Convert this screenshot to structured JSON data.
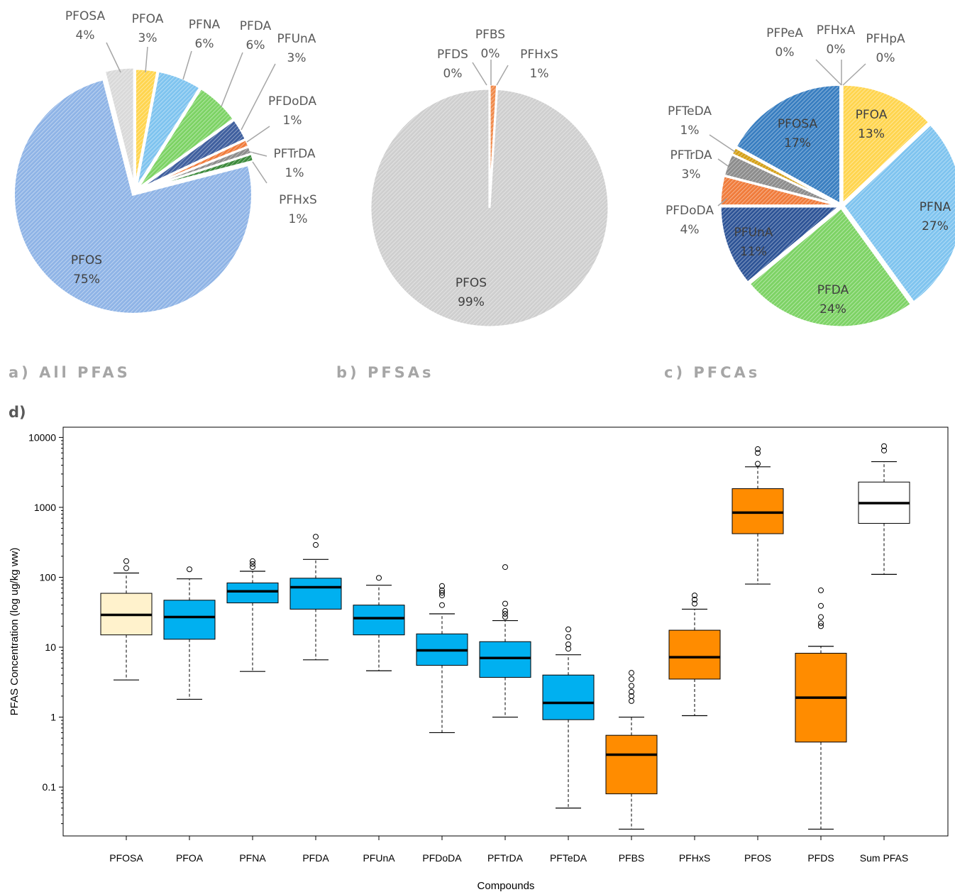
{
  "panels": {
    "a": "a) All PFAS",
    "b": "b) PFSAs",
    "c": "c) PFCAs",
    "d": "d)"
  },
  "colors": {
    "PFOSA": "#d9d9d9",
    "PFOA": "#ffd54f",
    "PFNA": "#7fc4ef",
    "PFDA": "#7dd365",
    "PFUnA": "#3f5f9e",
    "PFDoDA": "#f07c3c",
    "PFTrDA": "#8c8c8c",
    "PFHxS": "#3c8a3c",
    "PFOS": "#8fb4e6",
    "PFBS": "#f08a4b",
    "PFDS": "#5b9bd5",
    "PFOS_b": "#cfcfcf",
    "PFOSA_c": "#3a7fc1",
    "PFOA_c": "#ffd54f",
    "PFNA_c": "#7fc4ef",
    "PFDA_c": "#7dd365",
    "PFUnA_c": "#2f5597",
    "PFDoDA_c": "#f07c3c",
    "PFTrDA_c": "#8c8c8c",
    "PFTeDA_c": "#d4a017",
    "box_cream": "#fff2cc",
    "box_blue": "#00b0f0",
    "box_orange": "#ff8c00",
    "box_white": "#ffffff"
  },
  "chart_data": [
    {
      "type": "pie",
      "title": "a) All PFAS",
      "slices": [
        {
          "name": "PFOA",
          "value": 3,
          "label": "3%",
          "colorKey": "PFOA"
        },
        {
          "name": "PFNA",
          "value": 6,
          "label": "6%",
          "colorKey": "PFNA"
        },
        {
          "name": "PFDA",
          "value": 6,
          "label": "6%",
          "colorKey": "PFDA"
        },
        {
          "name": "PFUnA",
          "value": 3,
          "label": "3%",
          "colorKey": "PFUnA"
        },
        {
          "name": "PFDoDA",
          "value": 1,
          "label": "1%",
          "colorKey": "PFDoDA"
        },
        {
          "name": "PFTrDA",
          "value": 1,
          "label": "1%",
          "colorKey": "PFTrDA"
        },
        {
          "name": "PFHxS",
          "value": 1,
          "label": "1%",
          "colorKey": "PFHxS"
        },
        {
          "name": "PFOS",
          "value": 75,
          "label": "75%",
          "colorKey": "PFOS"
        },
        {
          "name": "PFOSA",
          "value": 4,
          "label": "4%",
          "colorKey": "PFOSA"
        }
      ]
    },
    {
      "type": "pie",
      "title": "b) PFSAs",
      "slices": [
        {
          "name": "PFHxS",
          "value": 1,
          "label": "1%",
          "colorKey": "PFBS"
        },
        {
          "name": "PFOS",
          "value": 99,
          "label": "99%",
          "colorKey": "PFOS_b"
        },
        {
          "name": "PFDS",
          "value": 0,
          "label": "0%",
          "colorKey": "PFDS"
        },
        {
          "name": "PFBS",
          "value": 0,
          "label": "0%",
          "colorKey": "PFBS"
        }
      ]
    },
    {
      "type": "pie",
      "title": "c) PFCAs",
      "slices": [
        {
          "name": "PFOA",
          "value": 13,
          "label": "13%",
          "colorKey": "PFOA_c"
        },
        {
          "name": "PFNA",
          "value": 27,
          "label": "27%",
          "colorKey": "PFNA_c"
        },
        {
          "name": "PFDA",
          "value": 24,
          "label": "24%",
          "colorKey": "PFDA_c"
        },
        {
          "name": "PFUnA",
          "value": 11,
          "label": "11%",
          "colorKey": "PFUnA_c"
        },
        {
          "name": "PFDoDA",
          "value": 4,
          "label": "4%",
          "colorKey": "PFDoDA_c"
        },
        {
          "name": "PFTrDA",
          "value": 3,
          "label": "3%",
          "colorKey": "PFTrDA_c"
        },
        {
          "name": "PFTeDA",
          "value": 1,
          "label": "1%",
          "colorKey": "PFTeDA_c"
        },
        {
          "name": "PFOSA",
          "value": 17,
          "label": "17%",
          "colorKey": "PFOSA_c"
        },
        {
          "name": "PFPeA",
          "value": 0,
          "label": "0%",
          "colorKey": "PFOA_c"
        },
        {
          "name": "PFHxA",
          "value": 0,
          "label": "0%",
          "colorKey": "PFOA_c"
        },
        {
          "name": "PFHpA",
          "value": 0,
          "label": "0%",
          "colorKey": "PFOA_c"
        }
      ]
    },
    {
      "type": "boxplot",
      "title": "d)",
      "xlabel": "Compounds",
      "ylabel": "PFAS Concentration (log ug/kg ww)",
      "yscale": "log",
      "ylim": [
        0.02,
        14000
      ],
      "yticks": [
        0.1,
        1,
        10,
        100,
        1000,
        10000
      ],
      "yticklabels": [
        "0.1",
        "1",
        "10",
        "100",
        "1000",
        "10000"
      ],
      "boxes": [
        {
          "name": "PFOSA",
          "min": 3.4,
          "q1": 15,
          "median": 29,
          "q3": 59,
          "max": 115,
          "outliers": [
            135,
            170
          ],
          "colorKey": "box_cream"
        },
        {
          "name": "PFOA",
          "min": 1.8,
          "q1": 13,
          "median": 27,
          "q3": 47,
          "max": 95,
          "outliers": [
            130
          ],
          "colorKey": "box_blue"
        },
        {
          "name": "PFNA",
          "min": 4.5,
          "q1": 43,
          "median": 63,
          "q3": 83,
          "max": 122,
          "outliers": [
            140,
            155,
            170
          ],
          "colorKey": "box_blue"
        },
        {
          "name": "PFDA",
          "min": 6.6,
          "q1": 35,
          "median": 72,
          "q3": 97,
          "max": 180,
          "outliers": [
            290,
            380
          ],
          "colorKey": "box_blue"
        },
        {
          "name": "PFUnA",
          "min": 4.6,
          "q1": 15,
          "median": 26,
          "q3": 40,
          "max": 77,
          "outliers": [
            98
          ],
          "colorKey": "box_blue"
        },
        {
          "name": "PFDoDA",
          "min": 0.6,
          "q1": 5.5,
          "median": 9,
          "q3": 15.5,
          "max": 30,
          "outliers": [
            40,
            55,
            60,
            65,
            75
          ],
          "colorKey": "box_blue"
        },
        {
          "name": "PFTrDA",
          "min": 1,
          "q1": 3.7,
          "median": 7,
          "q3": 12,
          "max": 24,
          "outliers": [
            27,
            30,
            33,
            42,
            140
          ],
          "colorKey": "box_blue"
        },
        {
          "name": "PFTeDA",
          "min": 0.05,
          "q1": 0.92,
          "median": 1.6,
          "q3": 4,
          "max": 7.8,
          "outliers": [
            9.5,
            11,
            14,
            18
          ],
          "colorKey": "box_blue"
        },
        {
          "name": "PFBS",
          "min": 0.025,
          "q1": 0.08,
          "median": 0.29,
          "q3": 0.55,
          "max": 1,
          "outliers": [
            1.7,
            2,
            2.3,
            2.8,
            3.5,
            4.3
          ],
          "colorKey": "box_orange"
        },
        {
          "name": "PFHxS",
          "min": 1.05,
          "q1": 3.5,
          "median": 7.2,
          "q3": 17.5,
          "max": 35,
          "outliers": [
            42,
            48,
            55
          ],
          "colorKey": "box_orange"
        },
        {
          "name": "PFOS",
          "min": 80,
          "q1": 420,
          "median": 840,
          "q3": 1850,
          "max": 3800,
          "outliers": [
            4200,
            6000,
            6800
          ],
          "colorKey": "box_orange"
        },
        {
          "name": "PFDS",
          "min": 0.025,
          "q1": 0.44,
          "median": 1.9,
          "q3": 8.2,
          "max": 10.3,
          "outliers": [
            20,
            22,
            27,
            39,
            65
          ],
          "colorKey": "box_orange"
        },
        {
          "name": "Sum PFAS",
          "min": 110,
          "q1": 590,
          "median": 1150,
          "q3": 2300,
          "max": 4500,
          "outliers": [
            6500,
            7500
          ],
          "colorKey": "box_white"
        }
      ]
    }
  ]
}
